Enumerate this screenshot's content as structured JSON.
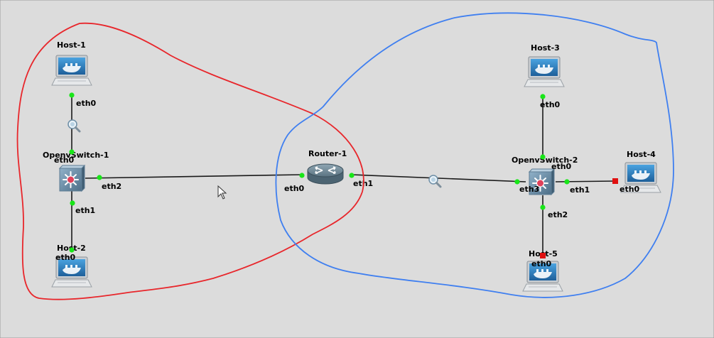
{
  "colors": {
    "background": "#dcdcdc",
    "link": "#1a1a1a",
    "port_up": "#19e619",
    "port_down": "#e01010",
    "annotation_red": "#e8262b",
    "annotation_blue": "#3f7ff0"
  },
  "nodes": [
    {
      "id": "host-1",
      "label": "Host-1",
      "kind": "docker-host"
    },
    {
      "id": "host-2",
      "label": "Host-2",
      "kind": "docker-host"
    },
    {
      "id": "host-3",
      "label": "Host-3",
      "kind": "docker-host"
    },
    {
      "id": "host-4",
      "label": "Host-4",
      "kind": "docker-host"
    },
    {
      "id": "host-5",
      "label": "Host-5",
      "kind": "docker-host"
    },
    {
      "id": "ovs-1",
      "label": "OpenvSwitch-1",
      "kind": "switch"
    },
    {
      "id": "ovs-2",
      "label": "OpenvSwitch-2",
      "kind": "switch"
    },
    {
      "id": "router-1",
      "label": "Router-1",
      "kind": "router"
    }
  ],
  "links": [
    {
      "a": "host-1",
      "a_port": "eth0",
      "b": "ovs-1",
      "b_port": "eth0",
      "status": "up",
      "capture": true
    },
    {
      "a": "ovs-1",
      "a_port": "eth1",
      "b": "host-2",
      "b_port": "eth0",
      "status": "up"
    },
    {
      "a": "ovs-1",
      "a_port": "eth2",
      "b": "router-1",
      "b_port": "eth0",
      "status": "up"
    },
    {
      "a": "router-1",
      "a_port": "eth1",
      "b": "ovs-2",
      "b_port": "eth3",
      "status": "up",
      "capture": true
    },
    {
      "a": "host-3",
      "a_port": "eth0",
      "b": "ovs-2",
      "b_port": "eth0",
      "status": "up"
    },
    {
      "a": "ovs-2",
      "a_port": "eth1",
      "b": "host-4",
      "b_port": "eth0",
      "status": "down"
    },
    {
      "a": "ovs-2",
      "a_port": "eth2",
      "b": "host-5",
      "b_port": "eth0",
      "status": "down"
    }
  ]
}
